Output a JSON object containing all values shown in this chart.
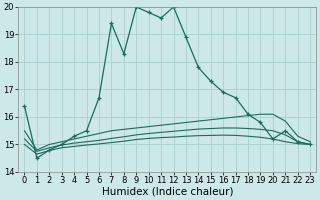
{
  "xlabel": "Humidex (Indice chaleur)",
  "x_values": [
    0,
    1,
    2,
    3,
    4,
    5,
    6,
    7,
    8,
    9,
    10,
    11,
    12,
    13,
    14,
    15,
    16,
    17,
    18,
    19,
    20,
    21,
    22,
    23
  ],
  "line1": [
    16.4,
    14.5,
    14.8,
    15.0,
    15.3,
    15.5,
    16.7,
    19.4,
    18.3,
    20.0,
    19.8,
    19.6,
    20.0,
    18.9,
    17.8,
    17.3,
    16.9,
    16.7,
    16.1,
    15.8,
    15.2,
    15.5,
    15.1,
    15.0
  ],
  "line2": [
    15.5,
    14.8,
    15.0,
    15.1,
    15.2,
    15.3,
    15.4,
    15.5,
    15.55,
    15.6,
    15.65,
    15.7,
    15.75,
    15.8,
    15.85,
    15.9,
    15.95,
    16.0,
    16.05,
    16.1,
    16.1,
    15.85,
    15.3,
    15.1
  ],
  "line3": [
    15.2,
    14.75,
    14.88,
    14.98,
    15.05,
    15.1,
    15.15,
    15.22,
    15.28,
    15.35,
    15.4,
    15.44,
    15.48,
    15.52,
    15.56,
    15.58,
    15.6,
    15.6,
    15.58,
    15.55,
    15.5,
    15.35,
    15.1,
    15.0
  ],
  "line4": [
    15.0,
    14.65,
    14.78,
    14.88,
    14.93,
    14.98,
    15.02,
    15.07,
    15.12,
    15.18,
    15.22,
    15.25,
    15.27,
    15.3,
    15.32,
    15.33,
    15.34,
    15.33,
    15.3,
    15.26,
    15.2,
    15.1,
    15.03,
    15.0
  ],
  "ylim": [
    14,
    20
  ],
  "xlim_min": -0.5,
  "xlim_max": 23.5,
  "yticks": [
    14,
    15,
    16,
    17,
    18,
    19,
    20
  ],
  "xticks": [
    0,
    1,
    2,
    3,
    4,
    5,
    6,
    7,
    8,
    9,
    10,
    11,
    12,
    13,
    14,
    15,
    16,
    17,
    18,
    19,
    20,
    21,
    22,
    23
  ],
  "line_color": "#1a6b5a",
  "bg_color": "#cce8e8",
  "grid_color": "#aacfcf",
  "tick_fontsize": 6,
  "label_fontsize": 7.5
}
